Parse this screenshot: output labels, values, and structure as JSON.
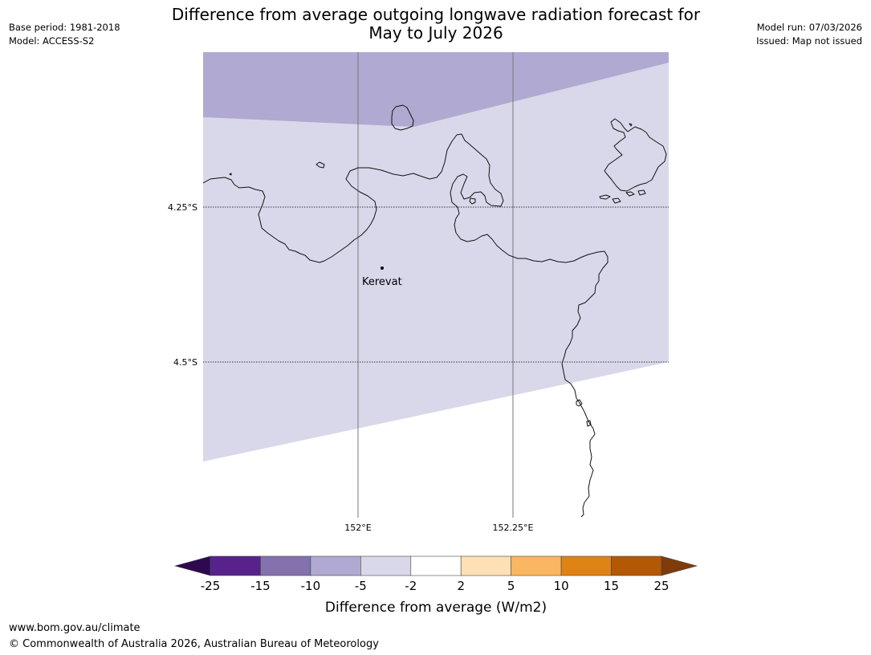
{
  "title": {
    "line1": "Difference from average outgoing longwave radiation forecast for",
    "line2": "May to July 2026"
  },
  "meta_left": {
    "base_period": "Base period: 1981-2018",
    "model": "Model: ACCESS-S2"
  },
  "meta_right": {
    "model_run": "Model run: 07/03/2026",
    "issued": "Issued: Map not issued"
  },
  "map": {
    "latitudes": [
      {
        "value": -4.25,
        "label": "4.25°S"
      },
      {
        "value": -4.5,
        "label": "4.5°S"
      }
    ],
    "longitudes": [
      {
        "value": 152.0,
        "label": "152°E"
      },
      {
        "value": 152.25,
        "label": "152.25°E"
      }
    ],
    "places": [
      {
        "name": "Kerevat"
      }
    ],
    "fill_categories": {
      "north_band": "-10 to -5",
      "main_area": "-5 to -2"
    }
  },
  "colorbar": {
    "label": "Difference from average (W/m2)",
    "ticks": [
      "-25",
      "-15",
      "-10",
      "-5",
      "-2",
      "2",
      "5",
      "10",
      "15",
      "25"
    ],
    "bins": [
      {
        "from": "-25",
        "to": "-15",
        "color": "#57238a"
      },
      {
        "from": "-15",
        "to": "-10",
        "color": "#8372ad"
      },
      {
        "from": "-10",
        "to": "-5",
        "color": "#b0a9d1"
      },
      {
        "from": "-5",
        "to": "-2",
        "color": "#d8d8ea"
      },
      {
        "from": "-2",
        "to": "2",
        "color": "#ffffff"
      },
      {
        "from": "2",
        "to": "5",
        "color": "#fde0b4"
      },
      {
        "from": "5",
        "to": "10",
        "color": "#fbb662"
      },
      {
        "from": "10",
        "to": "15",
        "color": "#e08315"
      },
      {
        "from": "15",
        "to": "25",
        "color": "#b35805"
      }
    ],
    "under_color": "#2d0a4f",
    "over_color": "#7f3b09"
  },
  "footer": {
    "url": "www.bom.gov.au/climate",
    "copyright": "© Commonwealth of Australia 2026, Australian Bureau of Meteorology"
  }
}
